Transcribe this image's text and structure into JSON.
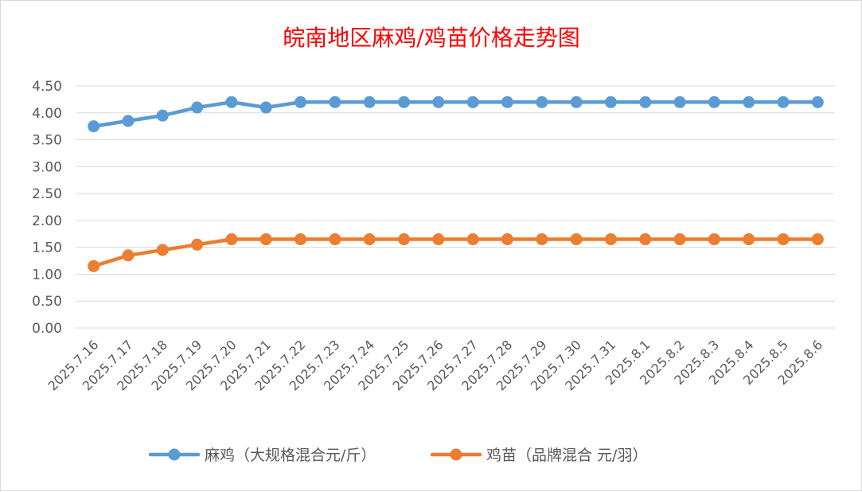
{
  "chart_data": {
    "type": "line",
    "title": "皖南地区麻鸡/鸡苗价格走势图",
    "categories": [
      "2025.7.16",
      "2025.7.17",
      "2025.7.18",
      "2025.7.19",
      "2025.7.20",
      "2025.7.21",
      "2025.7.22",
      "2025.7.23",
      "2025.7.24",
      "2025.7.25",
      "2025.7.26",
      "2025.7.27",
      "2025.7.28",
      "2025.7.29",
      "2025.7.30",
      "2025.7.31",
      "2025.8.1",
      "2025.8.2",
      "2025.8.3",
      "2025.8.4",
      "2025.8.5",
      "2025.8.6"
    ],
    "y_ticks": [
      "0.00",
      "0.50",
      "1.00",
      "1.50",
      "2.00",
      "2.50",
      "3.00",
      "3.50",
      "4.00",
      "4.50"
    ],
    "ylim": [
      0,
      4.5
    ],
    "grid": true,
    "legend_position": "bottom",
    "series": [
      {
        "name": "麻鸡（大规格混合元/斤）",
        "color": "#5b9bd5",
        "values": [
          3.75,
          3.85,
          3.95,
          4.1,
          4.2,
          4.1,
          4.2,
          4.2,
          4.2,
          4.2,
          4.2,
          4.2,
          4.2,
          4.2,
          4.2,
          4.2,
          4.2,
          4.2,
          4.2,
          4.2,
          4.2,
          4.2
        ]
      },
      {
        "name": "鸡苗（品牌混合 元/羽）",
        "color": "#ed7d31",
        "values": [
          1.15,
          1.35,
          1.45,
          1.55,
          1.65,
          1.65,
          1.65,
          1.65,
          1.65,
          1.65,
          1.65,
          1.65,
          1.65,
          1.65,
          1.65,
          1.65,
          1.65,
          1.65,
          1.65,
          1.65,
          1.65,
          1.65
        ]
      }
    ]
  }
}
